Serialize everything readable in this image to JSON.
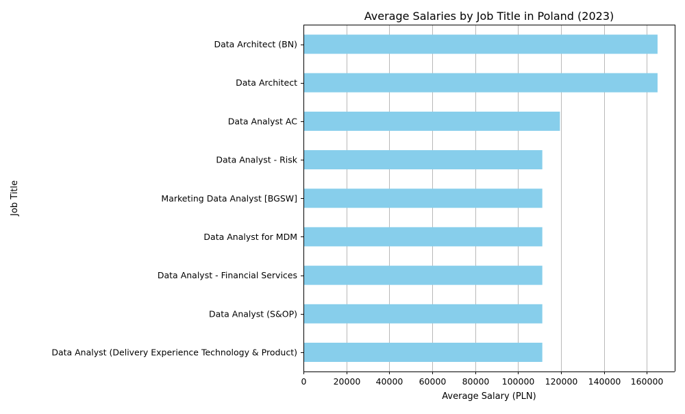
{
  "chart_data": {
    "type": "bar",
    "orientation": "horizontal",
    "title": "Average Salaries by Job Title in Poland (2023)",
    "xlabel": "Average Salary (PLN)",
    "ylabel": "Job Title",
    "xlim": [
      0,
      173000
    ],
    "x_ticks": [
      0,
      20000,
      40000,
      60000,
      80000,
      100000,
      120000,
      140000,
      160000
    ],
    "x_tick_labels": [
      "0",
      "20000",
      "40000",
      "60000",
      "80000",
      "100000",
      "120000",
      "140000",
      "160000"
    ],
    "grid": "vertical",
    "bar_color": "#87CEEB",
    "categories": [
      "Data Architect (BN)",
      "Data Architect",
      "Data Analyst AC",
      "Data Analyst - Risk",
      "Marketing Data Analyst [BGSW]",
      "Data Analyst for MDM",
      "Data Analyst - Financial Services",
      "Data Analyst (S&OP)",
      "Data Analyst (Delivery Experience Technology & Product)"
    ],
    "values": [
      165000,
      165000,
      119500,
      111300,
      111300,
      111300,
      111300,
      111300,
      111300
    ]
  }
}
